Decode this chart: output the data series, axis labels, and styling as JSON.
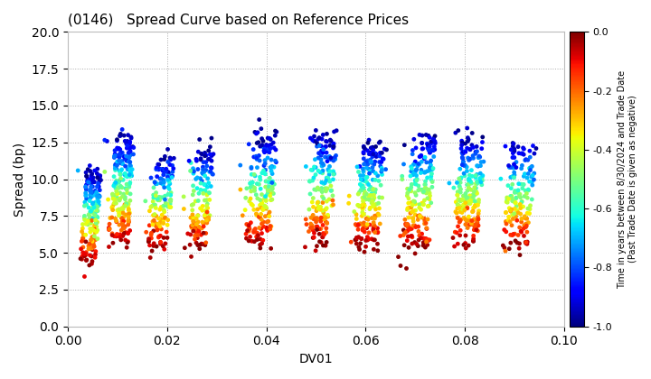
{
  "title": "(0146)   Spread Curve based on Reference Prices",
  "xlabel": "DV01",
  "ylabel": "Spread (bp)",
  "xlim": [
    0.0,
    0.1
  ],
  "ylim": [
    0.0,
    20.0
  ],
  "xticks": [
    0.0,
    0.02,
    0.04,
    0.06,
    0.08,
    0.1
  ],
  "yticks": [
    0.0,
    2.5,
    5.0,
    7.5,
    10.0,
    12.5,
    15.0,
    17.5,
    20.0
  ],
  "colorbar_label_line1": "Time in years between 8/30/2024 and Trade Date",
  "colorbar_label_line2": "(Past Trade Date is given as negative)",
  "colorbar_ticks": [
    0.0,
    -0.2,
    -0.4,
    -0.6,
    -0.8,
    -1.0
  ],
  "cmap": "jet",
  "color_vmin": -1.0,
  "color_vmax": 0.0,
  "background_color": "#ffffff",
  "grid_color": "#aaaaaa",
  "cluster_centers_x": [
    0.004,
    0.01,
    0.018,
    0.026,
    0.038,
    0.05,
    0.06,
    0.07,
    0.08,
    0.09
  ],
  "cluster_x_width": [
    0.003,
    0.004,
    0.004,
    0.004,
    0.005,
    0.005,
    0.005,
    0.005,
    0.005,
    0.005
  ],
  "cluster_y_min": [
    4.5,
    5.5,
    5.5,
    5.5,
    5.5,
    5.5,
    5.5,
    5.5,
    5.5,
    5.5
  ],
  "cluster_y_max": [
    10.5,
    13.0,
    11.5,
    12.0,
    13.0,
    13.0,
    12.5,
    13.0,
    13.0,
    12.5
  ],
  "marker_size": 12,
  "random_seed": 42
}
